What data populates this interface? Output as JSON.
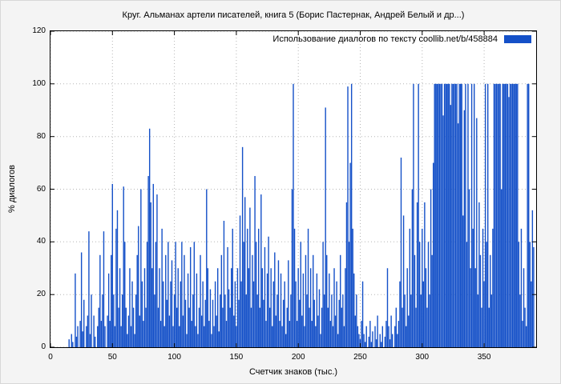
{
  "title": "Круг. Альманах артели писателей, книга 5 (Борис Пастернак, Андрей Белый и др...)",
  "legend": {
    "label": "Использование диалогов по тексту  coollib.net/b/458884"
  },
  "chart_data": {
    "type": "bar",
    "title": "Круг. Альманах артели писателей, книга 5 (Борис Пастернак, Андрей Белый и др...)",
    "xlabel": "Счетчик знаков (тыс.)",
    "ylabel": "% диалогов",
    "xlim": [
      0,
      392
    ],
    "ylim": [
      0,
      120
    ],
    "x_ticks": [
      0,
      50,
      100,
      150,
      200,
      250,
      300,
      350
    ],
    "y_ticks": [
      0,
      20,
      40,
      60,
      80,
      100,
      120
    ],
    "grid": true,
    "legend_position": "top-right",
    "color": "#1450c8",
    "grid_color": "#b5b5b5",
    "axis_color": "#000000",
    "x_start": 0,
    "x_step": 1,
    "values": [
      0,
      0,
      0,
      0,
      0,
      0,
      0,
      0,
      0,
      0,
      0,
      0,
      0,
      0,
      0,
      3,
      0,
      5,
      2,
      0,
      28,
      4,
      8,
      0,
      10,
      36,
      6,
      18,
      0,
      8,
      12,
      44,
      5,
      20,
      0,
      12,
      4,
      0,
      8,
      15,
      35,
      10,
      20,
      44,
      8,
      0,
      12,
      28,
      10,
      35,
      62,
      20,
      8,
      45,
      52,
      15,
      30,
      8,
      20,
      61,
      40,
      15,
      5,
      12,
      30,
      8,
      25,
      15,
      5,
      20,
      35,
      46,
      12,
      60,
      25,
      10,
      30,
      15,
      40,
      65,
      83,
      55,
      30,
      62,
      20,
      40,
      58,
      15,
      30,
      10,
      45,
      25,
      8,
      35,
      18,
      40,
      12,
      25,
      33,
      8,
      20,
      40,
      15,
      30,
      8,
      25,
      40,
      12,
      35,
      18,
      5,
      28,
      15,
      38,
      10,
      20,
      40,
      8,
      28,
      5,
      15,
      35,
      12,
      25,
      8,
      18,
      60,
      30,
      10,
      22,
      5,
      18,
      8,
      25,
      12,
      30,
      6,
      20,
      35,
      15,
      48,
      20,
      10,
      38,
      22,
      15,
      30,
      45,
      12,
      25,
      8,
      30,
      18,
      50,
      25,
      76,
      40,
      57,
      20,
      45,
      30,
      53,
      15,
      35,
      25,
      65,
      40,
      20,
      45,
      15,
      58,
      30,
      18,
      38,
      10,
      28,
      42,
      15,
      30,
      8,
      25,
      36,
      12,
      20,
      33,
      10,
      28,
      8,
      18,
      25,
      5,
      15,
      33,
      10,
      20,
      60,
      100,
      45,
      25,
      10,
      30,
      18,
      40,
      12,
      28,
      8,
      35,
      20,
      45,
      15,
      30,
      10,
      35,
      18,
      8,
      28,
      12,
      22,
      5,
      15,
      40,
      20,
      91,
      35,
      15,
      28,
      10,
      20,
      8,
      30,
      12,
      25,
      5,
      18,
      35,
      15,
      20,
      8,
      30,
      55,
      99,
      40,
      70,
      100,
      45,
      28,
      12,
      20,
      8,
      5,
      3,
      10,
      25,
      5,
      2,
      8,
      0,
      4,
      10,
      2,
      6,
      0,
      8,
      3,
      12,
      0,
      5,
      2,
      8,
      0,
      4,
      10,
      30,
      8,
      3,
      12,
      5,
      0,
      8,
      15,
      5,
      10,
      25,
      72,
      15,
      50,
      20,
      8,
      30,
      12,
      45,
      20,
      60,
      100,
      35,
      15,
      55,
      100,
      40,
      20,
      45,
      25,
      55,
      30,
      15,
      40,
      20,
      60,
      35,
      70,
      100,
      100,
      100,
      100,
      100,
      100,
      100,
      88,
      100,
      100,
      100,
      100,
      100,
      92,
      100,
      100,
      100,
      100,
      100,
      85,
      100,
      100,
      100,
      50,
      90,
      100,
      40,
      100,
      60,
      30,
      100,
      45,
      100,
      30,
      87,
      20,
      55,
      35,
      15,
      45,
      25,
      100,
      40,
      100,
      15,
      35,
      20,
      45,
      100,
      100,
      100,
      100,
      100,
      100,
      60,
      100,
      100,
      100,
      100,
      100,
      95,
      100,
      100,
      100,
      100,
      100,
      100,
      100,
      40,
      20,
      45,
      10,
      30,
      15,
      8,
      100,
      100,
      40,
      25,
      52,
      38,
      0
    ]
  }
}
